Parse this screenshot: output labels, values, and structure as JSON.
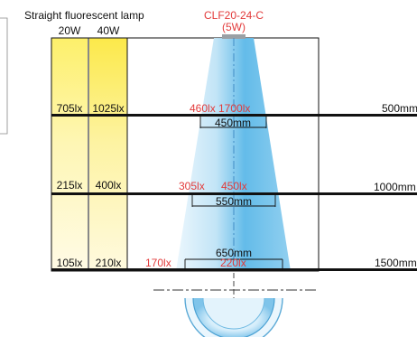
{
  "header": {
    "left_title": "Straight fluorescent lamp",
    "col_20w": "20W",
    "col_40w": "40W",
    "model": "CLF20-24-C",
    "model_power": "(5W)"
  },
  "rows": [
    {
      "lux_20w": "705lx",
      "lux_40w": "1025lx",
      "lux_near": "460lx",
      "lux_center": "1700lx",
      "width": "450mm",
      "distance": "500mm"
    },
    {
      "lux_20w": "215lx",
      "lux_40w": "400lx",
      "lux_near": "305lx",
      "lux_center": "450lx",
      "width": "550mm",
      "distance": "1000mm"
    },
    {
      "lux_20w": "105lx",
      "lux_40w": "210lx",
      "lux_near": "170lx",
      "lux_center": "220lx",
      "width": "650mm",
      "distance": "1500mm"
    }
  ],
  "colors": {
    "accent_red": "#e23b3b",
    "beam_blue": "#5bb8e8",
    "lamp_yellow": "#fdf06a",
    "line_black": "#111111"
  }
}
